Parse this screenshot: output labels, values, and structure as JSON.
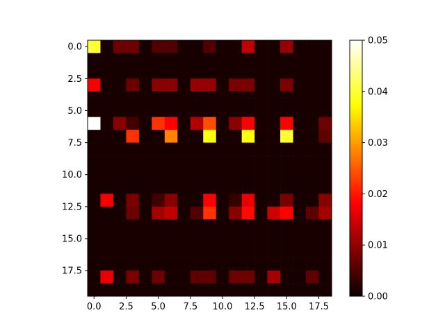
{
  "chart_data": {
    "type": "heatmap",
    "title": "",
    "xlabel": "",
    "ylabel": "",
    "colormap": "hot",
    "x_ticks": [
      "0.0",
      "2.5",
      "5.0",
      "7.5",
      "10.0",
      "12.5",
      "15.0",
      "17.5"
    ],
    "y_ticks": [
      "0.0",
      "2.5",
      "5.0",
      "7.5",
      "10.0",
      "12.5",
      "15.0",
      "17.5"
    ],
    "colorbar_ticks": [
      "0.00",
      "0.01",
      "0.02",
      "0.03",
      "0.04",
      "0.05"
    ],
    "vmin": 0.0,
    "vmax": 0.05,
    "values": [
      [
        0.04,
        0.001,
        0.007,
        0.007,
        0.001,
        0.005,
        0.005,
        0.001,
        0.001,
        0.005,
        0.001,
        0.001,
        0.013,
        0.001,
        0.001,
        0.01,
        0.001,
        0.001,
        0.001
      ],
      [
        0.001,
        0.001,
        0.001,
        0.001,
        0.001,
        0.001,
        0.001,
        0.001,
        0.001,
        0.001,
        0.001,
        0.001,
        0.001,
        0.001,
        0.001,
        0.001,
        0.001,
        0.001,
        0.001
      ],
      [
        0.001,
        0.001,
        0.001,
        0.001,
        0.001,
        0.001,
        0.001,
        0.001,
        0.001,
        0.001,
        0.001,
        0.001,
        0.001,
        0.001,
        0.001,
        0.001,
        0.001,
        0.001,
        0.001
      ],
      [
        0.017,
        0.001,
        0.001,
        0.007,
        0.001,
        0.009,
        0.009,
        0.001,
        0.01,
        0.01,
        0.001,
        0.008,
        0.008,
        0.001,
        0.001,
        0.008,
        0.001,
        0.001,
        0.001
      ],
      [
        0.001,
        0.001,
        0.001,
        0.001,
        0.001,
        0.001,
        0.001,
        0.001,
        0.001,
        0.001,
        0.001,
        0.001,
        0.001,
        0.001,
        0.001,
        0.001,
        0.001,
        0.001,
        0.001
      ],
      [
        0.001,
        0.001,
        0.001,
        0.001,
        0.001,
        0.001,
        0.001,
        0.001,
        0.001,
        0.001,
        0.001,
        0.001,
        0.001,
        0.001,
        0.001,
        0.001,
        0.001,
        0.001,
        0.001
      ],
      [
        0.05,
        0.001,
        0.009,
        0.004,
        0.001,
        0.022,
        0.018,
        0.001,
        0.012,
        0.024,
        0.001,
        0.009,
        0.018,
        0.001,
        0.001,
        0.018,
        0.001,
        0.001,
        0.007
      ],
      [
        0.001,
        0.001,
        0.001,
        0.022,
        0.001,
        0.001,
        0.028,
        0.001,
        0.001,
        0.038,
        0.001,
        0.001,
        0.038,
        0.001,
        0.001,
        0.04,
        0.001,
        0.001,
        0.006
      ],
      [
        0.001,
        0.001,
        0.001,
        0.001,
        0.001,
        0.001,
        0.001,
        0.001,
        0.001,
        0.001,
        0.001,
        0.001,
        0.001,
        0.001,
        0.001,
        0.001,
        0.001,
        0.001,
        0.001
      ],
      [
        0.001,
        0.001,
        0.001,
        0.001,
        0.001,
        0.001,
        0.001,
        0.001,
        0.001,
        0.001,
        0.001,
        0.001,
        0.001,
        0.001,
        0.001,
        0.001,
        0.001,
        0.001,
        0.001
      ],
      [
        0.001,
        0.001,
        0.001,
        0.001,
        0.001,
        0.001,
        0.001,
        0.001,
        0.001,
        0.001,
        0.001,
        0.001,
        0.001,
        0.001,
        0.001,
        0.001,
        0.001,
        0.001,
        0.001
      ],
      [
        0.001,
        0.001,
        0.001,
        0.001,
        0.001,
        0.001,
        0.001,
        0.001,
        0.001,
        0.001,
        0.001,
        0.001,
        0.001,
        0.001,
        0.001,
        0.001,
        0.001,
        0.001,
        0.001
      ],
      [
        0.001,
        0.017,
        0.001,
        0.008,
        0.001,
        0.004,
        0.009,
        0.001,
        0.001,
        0.018,
        0.001,
        0.003,
        0.016,
        0.001,
        0.001,
        0.008,
        0.001,
        0.001,
        0.009
      ],
      [
        0.001,
        0.001,
        0.001,
        0.007,
        0.001,
        0.011,
        0.013,
        0.001,
        0.005,
        0.022,
        0.001,
        0.009,
        0.019,
        0.001,
        0.014,
        0.018,
        0.001,
        0.006,
        0.011
      ],
      [
        0.001,
        0.001,
        0.001,
        0.001,
        0.001,
        0.001,
        0.001,
        0.001,
        0.001,
        0.001,
        0.001,
        0.001,
        0.001,
        0.001,
        0.001,
        0.001,
        0.001,
        0.001,
        0.001
      ],
      [
        0.001,
        0.001,
        0.001,
        0.001,
        0.001,
        0.001,
        0.001,
        0.001,
        0.001,
        0.001,
        0.001,
        0.001,
        0.001,
        0.001,
        0.001,
        0.001,
        0.001,
        0.001,
        0.001
      ],
      [
        0.001,
        0.001,
        0.001,
        0.001,
        0.001,
        0.001,
        0.001,
        0.001,
        0.001,
        0.001,
        0.001,
        0.001,
        0.001,
        0.001,
        0.001,
        0.001,
        0.001,
        0.001,
        0.001
      ],
      [
        0.001,
        0.001,
        0.001,
        0.001,
        0.001,
        0.001,
        0.001,
        0.001,
        0.001,
        0.001,
        0.001,
        0.001,
        0.001,
        0.001,
        0.001,
        0.001,
        0.001,
        0.001,
        0.001
      ],
      [
        0.001,
        0.016,
        0.001,
        0.008,
        0.001,
        0.007,
        0.001,
        0.001,
        0.006,
        0.006,
        0.001,
        0.007,
        0.007,
        0.001,
        0.011,
        0.001,
        0.001,
        0.006,
        0.001
      ],
      [
        0.001,
        0.001,
        0.001,
        0.001,
        0.001,
        0.001,
        0.001,
        0.001,
        0.001,
        0.001,
        0.001,
        0.001,
        0.001,
        0.001,
        0.001,
        0.001,
        0.001,
        0.001,
        0.001
      ]
    ],
    "grid": false,
    "legend": "colorbar-right"
  }
}
